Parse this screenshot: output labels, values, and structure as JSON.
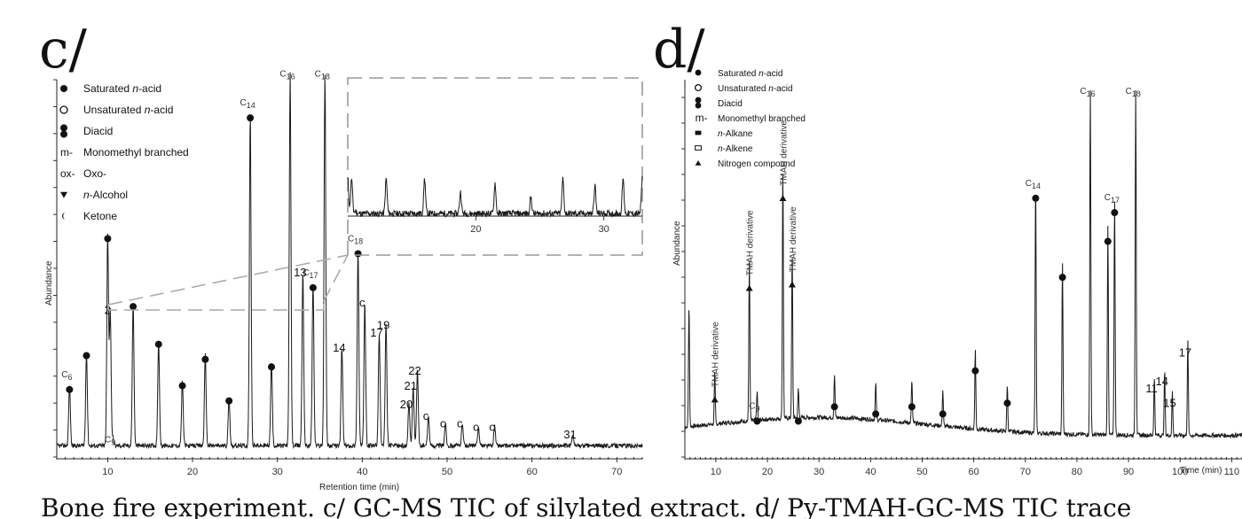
{
  "panel_c": {
    "label": "c/",
    "legend": [
      {
        "symbol": "filled-circle",
        "text": "Saturated ",
        "italic": "n",
        "rest": "-acid"
      },
      {
        "symbol": "open-circle",
        "text": "Unsaturated ",
        "italic": "n",
        "rest": "-acid"
      },
      {
        "symbol": "double-circle",
        "text": "Diacid",
        "italic": "",
        "rest": ""
      },
      {
        "symbol": "m-",
        "text": "Monomethyl branched",
        "italic": "",
        "rest": ""
      },
      {
        "symbol": "ox-",
        "text": "Oxo-",
        "italic": "",
        "rest": ""
      },
      {
        "symbol": "down-triangle",
        "text": "",
        "italic": "n",
        "rest": "-Alcohol"
      },
      {
        "symbol": "crescent",
        "text": "Ketone",
        "italic": "",
        "rest": ""
      }
    ],
    "ylabel": "Abundance",
    "xlabel": "Retention time (min)"
  },
  "panel_d": {
    "label": "d/",
    "legend": [
      {
        "symbol": "filled-circle",
        "text": "Saturated ",
        "italic": "n",
        "rest": "-acid"
      },
      {
        "symbol": "open-circle",
        "text": "Unsaturated ",
        "italic": "n",
        "rest": "-acid"
      },
      {
        "symbol": "double-circle",
        "text": "Diacid",
        "italic": "",
        "rest": ""
      },
      {
        "symbol": "m-",
        "text": "Monomethyl branched",
        "italic": "",
        "rest": ""
      },
      {
        "symbol": "filled-square",
        "text": "",
        "italic": "n",
        "rest": "-Alkane"
      },
      {
        "symbol": "open-square",
        "text": "",
        "italic": "n",
        "rest": "-Alkene"
      },
      {
        "symbol": "up-triangle",
        "text": "Nitrogen compound",
        "italic": "",
        "rest": ""
      }
    ],
    "ylabel": "Abundance",
    "xlabel": "Time (min)"
  },
  "caption": "Bone fire experiment. c/ GC-MS TIC of silylated extract. d/ Py-TMAH-GC-MS TIC trace",
  "chart_data": [
    {
      "type": "line",
      "panel": "c",
      "xlabel": "Retention time (min)",
      "ylabel": "Abundance",
      "xlim": [
        4,
        73
      ],
      "xticks": [
        10,
        20,
        30,
        40,
        50,
        60,
        70
      ],
      "baseline": 0.03,
      "peaks": [
        {
          "x": 5.5,
          "y": 0.16,
          "label": "C",
          "sub": "6",
          "symbol": "filled-circle"
        },
        {
          "x": 7.5,
          "y": 0.25,
          "label": "",
          "sub": "",
          "symbol": "filled-circle"
        },
        {
          "x": 10.3,
          "y": 0.36,
          "label": "2",
          "sub": "",
          "symbol": ""
        },
        {
          "x": 10.0,
          "y": 0.56,
          "label": "",
          "sub": "",
          "symbol": "filled-circle"
        },
        {
          "x": 10.6,
          "y": 0.02,
          "label": "C",
          "sub": "9",
          "symbol": ""
        },
        {
          "x": 13.0,
          "y": 0.38,
          "label": "",
          "sub": "",
          "symbol": "filled-circle"
        },
        {
          "x": 16.0,
          "y": 0.28,
          "label": "",
          "sub": "",
          "symbol": "filled-circle"
        },
        {
          "x": 18.8,
          "y": 0.17,
          "label": "",
          "sub": "",
          "symbol": "filled-circle"
        },
        {
          "x": 21.5,
          "y": 0.24,
          "label": "",
          "sub": "",
          "symbol": "filled-circle"
        },
        {
          "x": 24.3,
          "y": 0.13,
          "label": "",
          "sub": "",
          "symbol": "filled-circle"
        },
        {
          "x": 26.8,
          "y": 0.88,
          "label": "C",
          "sub": "14",
          "symbol": "filled-circle"
        },
        {
          "x": 29.3,
          "y": 0.22,
          "label": "",
          "sub": "",
          "symbol": "filled-circle"
        },
        {
          "x": 31.5,
          "y": 0.99,
          "label": "C",
          "sub": "16",
          "symbol": ""
        },
        {
          "x": 33.0,
          "y": 0.46,
          "label": "13",
          "sub": "",
          "symbol": ""
        },
        {
          "x": 34.2,
          "y": 0.43,
          "label": "C",
          "sub": "17",
          "symbol": "filled-circle"
        },
        {
          "x": 35.6,
          "y": 0.99,
          "label": "C",
          "sub": "18",
          "symbol": ""
        },
        {
          "x": 37.6,
          "y": 0.26,
          "label": "14",
          "sub": "",
          "symbol": ""
        },
        {
          "x": 39.5,
          "y": 0.52,
          "label": "C",
          "sub": "18",
          "symbol": "filled-circle"
        },
        {
          "x": 40.3,
          "y": 0.38,
          "label": "c",
          "sub": "",
          "symbol": ""
        },
        {
          "x": 42.0,
          "y": 0.3,
          "label": "17",
          "sub": "",
          "symbol": ""
        },
        {
          "x": 42.8,
          "y": 0.32,
          "label": "19",
          "sub": "",
          "symbol": ""
        },
        {
          "x": 45.5,
          "y": 0.11,
          "label": "20",
          "sub": "",
          "symbol": ""
        },
        {
          "x": 46.0,
          "y": 0.16,
          "label": "21",
          "sub": "",
          "symbol": ""
        },
        {
          "x": 46.5,
          "y": 0.2,
          "label": "22",
          "sub": "",
          "symbol": ""
        },
        {
          "x": 47.8,
          "y": 0.08,
          "label": "c",
          "sub": "",
          "symbol": ""
        },
        {
          "x": 49.8,
          "y": 0.06,
          "label": "c",
          "sub": "",
          "symbol": ""
        },
        {
          "x": 51.8,
          "y": 0.06,
          "label": "c",
          "sub": "",
          "symbol": ""
        },
        {
          "x": 53.7,
          "y": 0.05,
          "label": "c",
          "sub": "",
          "symbol": ""
        },
        {
          "x": 55.6,
          "y": 0.05,
          "label": "c",
          "sub": "",
          "symbol": ""
        },
        {
          "x": 64.8,
          "y": 0.03,
          "label": "31",
          "sub": "",
          "symbol": ""
        }
      ]
    },
    {
      "type": "line",
      "panel": "d",
      "xlabel": "Time (min)",
      "ylabel": "Abundance",
      "xlim": [
        4,
        112
      ],
      "xticks": [
        10,
        20,
        30,
        40,
        50,
        60,
        70,
        80,
        90,
        100,
        110
      ],
      "baseline": 0.06,
      "peaks": [
        {
          "x": 4.8,
          "y": 0.34,
          "label": "",
          "sub": "",
          "symbol": ""
        },
        {
          "x": 9.8,
          "y": 0.14,
          "label": "TMAH derivative",
          "sub": "",
          "symbol": "up-triangle"
        },
        {
          "x": 16.5,
          "y": 0.45,
          "label": "TMAH derivative",
          "sub": "",
          "symbol": "up-triangle"
        },
        {
          "x": 18.0,
          "y": 0.08,
          "label": "C",
          "sub": "9",
          "symbol": "filled-circle"
        },
        {
          "x": 23.0,
          "y": 0.7,
          "label": "TMAH derivative",
          "sub": "",
          "symbol": "up-triangle"
        },
        {
          "x": 24.8,
          "y": 0.46,
          "label": "TMAH derivative",
          "sub": "",
          "symbol": "up-triangle"
        },
        {
          "x": 26.0,
          "y": 0.08,
          "label": "",
          "sub": "",
          "symbol": "filled-circle"
        },
        {
          "x": 33.0,
          "y": 0.12,
          "label": "",
          "sub": "",
          "symbol": "filled-circle"
        },
        {
          "x": 41.0,
          "y": 0.1,
          "label": "",
          "sub": "",
          "symbol": "filled-circle"
        },
        {
          "x": 48.0,
          "y": 0.12,
          "label": "",
          "sub": "",
          "symbol": "filled-circle"
        },
        {
          "x": 54.0,
          "y": 0.1,
          "label": "",
          "sub": "",
          "symbol": "filled-circle"
        },
        {
          "x": 60.3,
          "y": 0.22,
          "label": "",
          "sub": "",
          "symbol": "filled-circle"
        },
        {
          "x": 66.5,
          "y": 0.13,
          "label": "",
          "sub": "",
          "symbol": "filled-circle"
        },
        {
          "x": 72.0,
          "y": 0.7,
          "label": "C",
          "sub": "14",
          "symbol": "filled-circle"
        },
        {
          "x": 77.2,
          "y": 0.48,
          "label": "",
          "sub": "",
          "symbol": "filled-circle"
        },
        {
          "x": 82.6,
          "y": 0.99,
          "label": "C",
          "sub": "16",
          "symbol": ""
        },
        {
          "x": 86.0,
          "y": 0.58,
          "label": "",
          "sub": "",
          "symbol": "filled-circle"
        },
        {
          "x": 87.3,
          "y": 0.66,
          "label": "C",
          "sub": "17",
          "symbol": "filled-circle"
        },
        {
          "x": 91.4,
          "y": 0.99,
          "label": "C",
          "sub": "18",
          "symbol": ""
        },
        {
          "x": 95.0,
          "y": 0.16,
          "label": "11",
          "sub": "",
          "symbol": ""
        },
        {
          "x": 97.0,
          "y": 0.18,
          "label": "14",
          "sub": "",
          "symbol": ""
        },
        {
          "x": 98.5,
          "y": 0.12,
          "label": "15",
          "sub": "",
          "symbol": ""
        },
        {
          "x": 101.5,
          "y": 0.26,
          "label": "17",
          "sub": "",
          "symbol": ""
        }
      ]
    }
  ]
}
